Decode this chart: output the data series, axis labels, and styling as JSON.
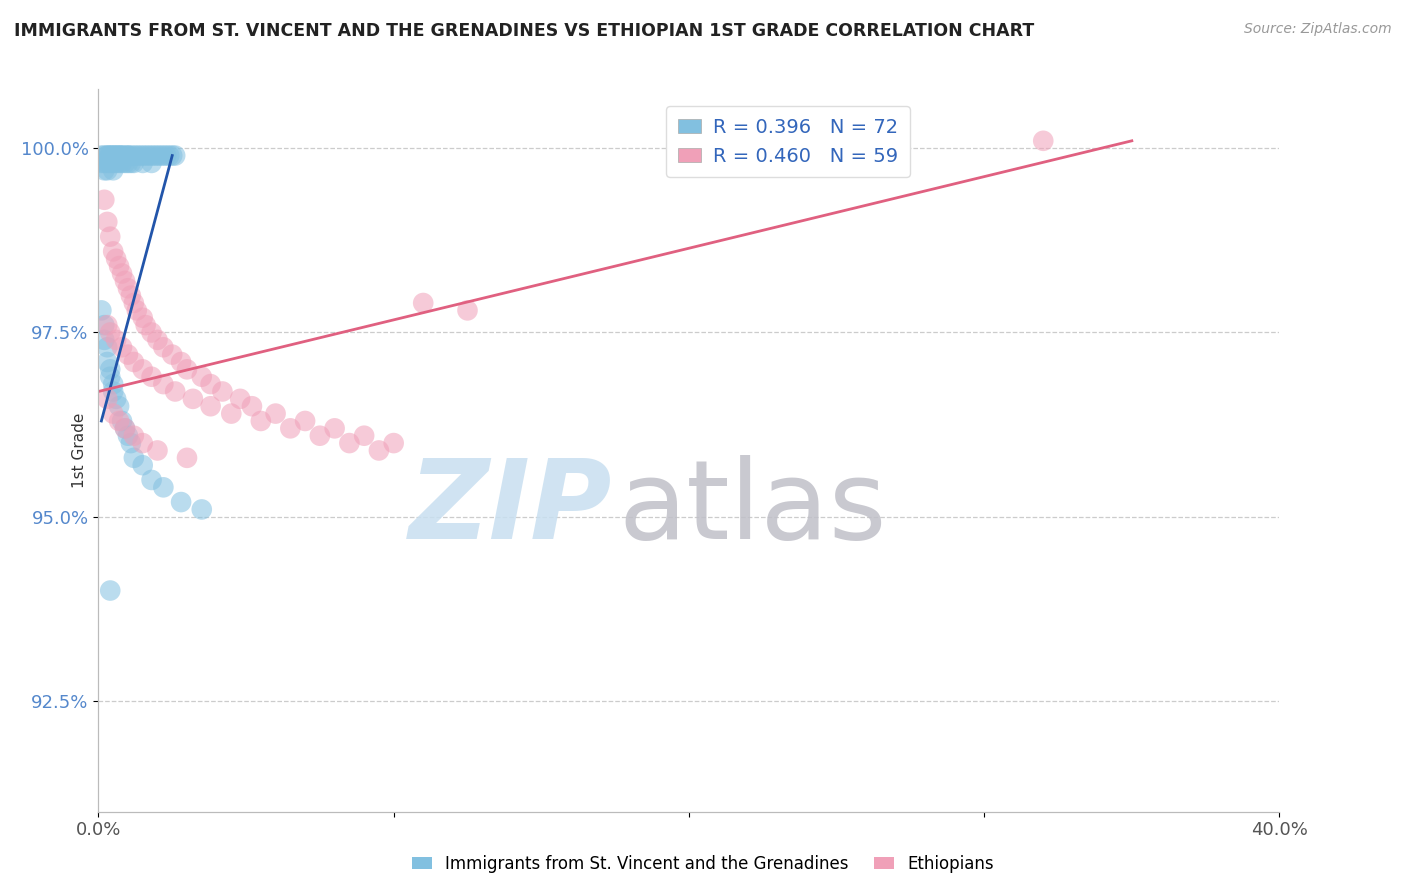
{
  "title": "IMMIGRANTS FROM ST. VINCENT AND THE GRENADINES VS ETHIOPIAN 1ST GRADE CORRELATION CHART",
  "source": "Source: ZipAtlas.com",
  "ylabel_label": "1st Grade",
  "ytick_labels": [
    "92.5%",
    "95.0%",
    "97.5%",
    "100.0%"
  ],
  "ytick_values": [
    0.925,
    0.95,
    0.975,
    1.0
  ],
  "xlim": [
    0.0,
    0.4
  ],
  "ylim": [
    0.91,
    1.008
  ],
  "legend1_label": "Immigrants from St. Vincent and the Grenadines",
  "legend2_label": "Ethiopians",
  "R1": "0.396",
  "N1": "72",
  "R2": "0.460",
  "N2": "59",
  "blue_color": "#82c0e0",
  "pink_color": "#f0a0b8",
  "blue_line_color": "#2255aa",
  "pink_line_color": "#e06080",
  "watermark_zip_color": "#c8dff0",
  "watermark_atlas_color": "#c0c0c8",
  "blue_scatter_x": [
    0.001,
    0.001,
    0.002,
    0.002,
    0.002,
    0.003,
    0.003,
    0.003,
    0.003,
    0.004,
    0.004,
    0.004,
    0.005,
    0.005,
    0.005,
    0.005,
    0.006,
    0.006,
    0.006,
    0.007,
    0.007,
    0.007,
    0.008,
    0.008,
    0.008,
    0.009,
    0.009,
    0.01,
    0.01,
    0.01,
    0.011,
    0.011,
    0.012,
    0.012,
    0.013,
    0.014,
    0.015,
    0.015,
    0.016,
    0.017,
    0.018,
    0.018,
    0.019,
    0.02,
    0.021,
    0.022,
    0.023,
    0.024,
    0.025,
    0.026,
    0.001,
    0.002,
    0.002,
    0.003,
    0.003,
    0.004,
    0.004,
    0.005,
    0.005,
    0.006,
    0.007,
    0.008,
    0.009,
    0.01,
    0.011,
    0.012,
    0.015,
    0.018,
    0.022,
    0.028,
    0.035,
    0.004
  ],
  "blue_scatter_y": [
    0.999,
    0.998,
    0.999,
    0.998,
    0.997,
    0.999,
    0.999,
    0.998,
    0.997,
    0.999,
    0.999,
    0.998,
    0.999,
    0.999,
    0.998,
    0.997,
    0.999,
    0.999,
    0.998,
    0.999,
    0.999,
    0.998,
    0.999,
    0.999,
    0.998,
    0.999,
    0.998,
    0.999,
    0.999,
    0.998,
    0.999,
    0.998,
    0.999,
    0.998,
    0.999,
    0.999,
    0.999,
    0.998,
    0.999,
    0.999,
    0.999,
    0.998,
    0.999,
    0.999,
    0.999,
    0.999,
    0.999,
    0.999,
    0.999,
    0.999,
    0.978,
    0.976,
    0.974,
    0.973,
    0.971,
    0.97,
    0.969,
    0.968,
    0.967,
    0.966,
    0.965,
    0.963,
    0.962,
    0.961,
    0.96,
    0.958,
    0.957,
    0.955,
    0.954,
    0.952,
    0.951,
    0.94
  ],
  "pink_scatter_x": [
    0.002,
    0.003,
    0.004,
    0.005,
    0.006,
    0.007,
    0.008,
    0.009,
    0.01,
    0.011,
    0.012,
    0.013,
    0.015,
    0.016,
    0.018,
    0.02,
    0.022,
    0.025,
    0.028,
    0.03,
    0.035,
    0.038,
    0.042,
    0.048,
    0.052,
    0.06,
    0.07,
    0.08,
    0.09,
    0.1,
    0.11,
    0.125,
    0.003,
    0.004,
    0.006,
    0.008,
    0.01,
    0.012,
    0.015,
    0.018,
    0.022,
    0.026,
    0.032,
    0.038,
    0.045,
    0.055,
    0.065,
    0.075,
    0.085,
    0.095,
    0.003,
    0.005,
    0.007,
    0.009,
    0.012,
    0.015,
    0.02,
    0.03,
    0.32
  ],
  "pink_scatter_y": [
    0.993,
    0.99,
    0.988,
    0.986,
    0.985,
    0.984,
    0.983,
    0.982,
    0.981,
    0.98,
    0.979,
    0.978,
    0.977,
    0.976,
    0.975,
    0.974,
    0.973,
    0.972,
    0.971,
    0.97,
    0.969,
    0.968,
    0.967,
    0.966,
    0.965,
    0.964,
    0.963,
    0.962,
    0.961,
    0.96,
    0.979,
    0.978,
    0.976,
    0.975,
    0.974,
    0.973,
    0.972,
    0.971,
    0.97,
    0.969,
    0.968,
    0.967,
    0.966,
    0.965,
    0.964,
    0.963,
    0.962,
    0.961,
    0.96,
    0.959,
    0.966,
    0.964,
    0.963,
    0.962,
    0.961,
    0.96,
    0.959,
    0.958,
    1.001
  ],
  "blue_line_x": [
    0.001,
    0.025
  ],
  "blue_line_y": [
    0.963,
    0.999
  ],
  "pink_line_x": [
    0.0,
    0.35
  ],
  "pink_line_y": [
    0.967,
    1.001
  ]
}
